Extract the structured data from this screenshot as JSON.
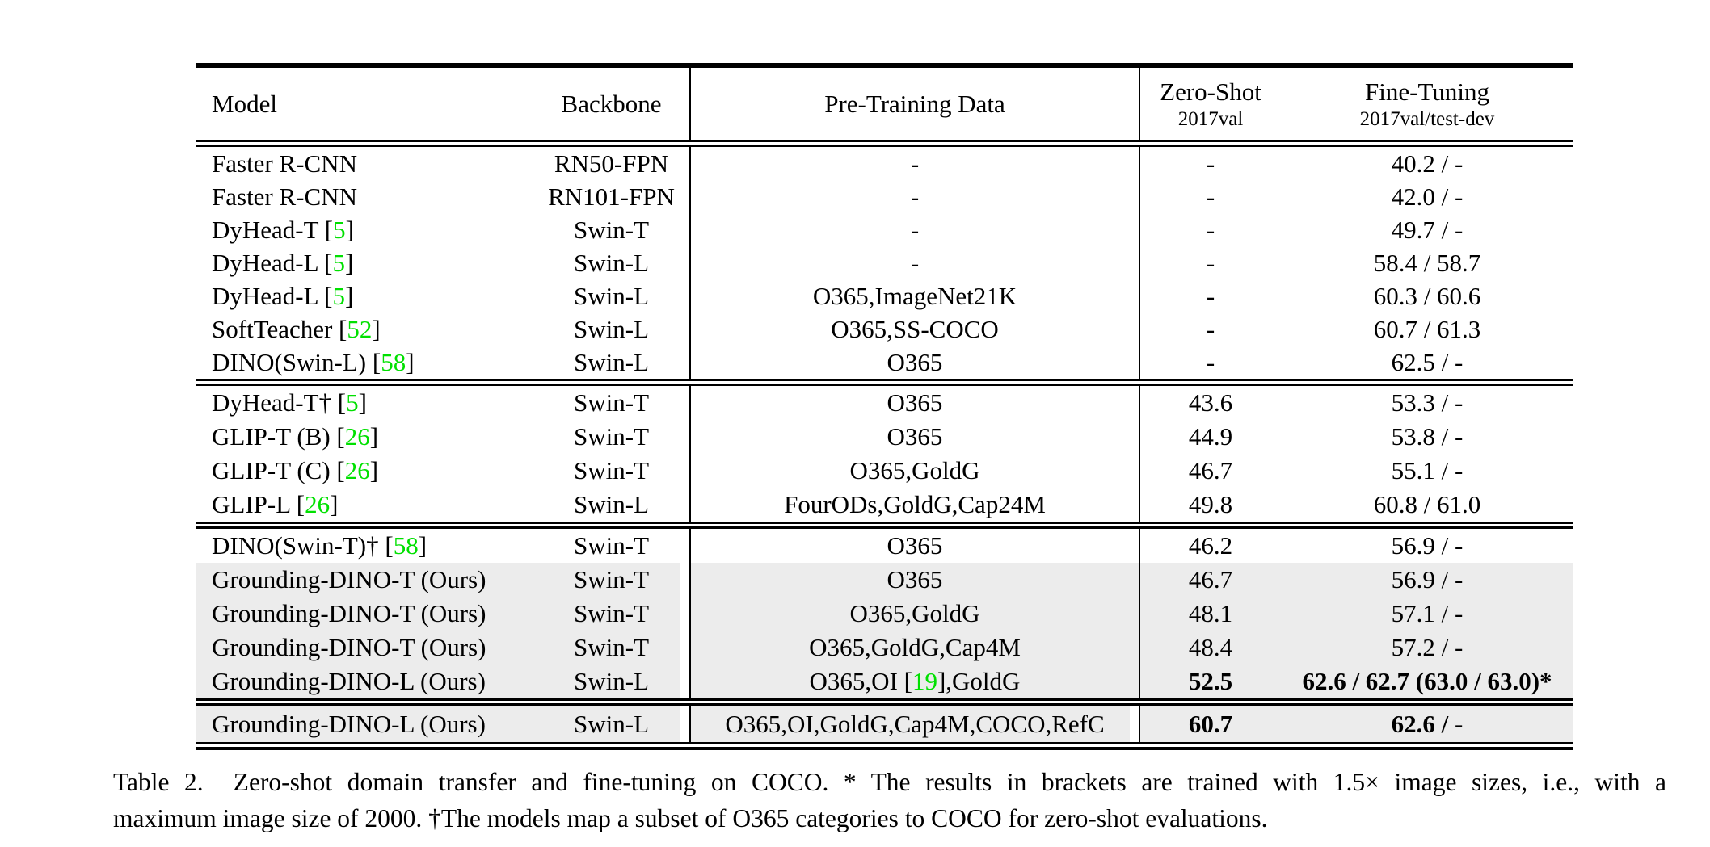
{
  "table": {
    "header": {
      "model": "Model",
      "backbone": "Backbone",
      "pretraining": "Pre-Training Data",
      "zeroshot_title": "Zero-Shot",
      "zeroshot_sub": "2017val",
      "finetuning_title": "Fine-Tuning",
      "finetuning_sub": "2017val/test-dev"
    },
    "colors": {
      "citation_green": "#00e000",
      "highlight_gray": "#ececec"
    },
    "blocks": [
      {
        "rows": [
          {
            "model": [
              [
                "Faster R-CNN",
                0
              ]
            ],
            "backbone": "RN50-FPN",
            "pretrain": [
              [
                "-",
                0
              ]
            ],
            "zs": "-",
            "ft": "40.2 / -",
            "bold": false,
            "hl": false
          },
          {
            "model": [
              [
                "Faster R-CNN",
                0
              ]
            ],
            "backbone": "RN101-FPN",
            "pretrain": [
              [
                "-",
                0
              ]
            ],
            "zs": "-",
            "ft": "42.0 / -",
            "bold": false,
            "hl": false
          },
          {
            "model": [
              [
                "DyHead-T [",
                0
              ],
              [
                "5",
                1
              ],
              [
                "]",
                0
              ]
            ],
            "backbone": "Swin-T",
            "pretrain": [
              [
                "-",
                0
              ]
            ],
            "zs": "-",
            "ft": "49.7 / -",
            "bold": false,
            "hl": false
          },
          {
            "model": [
              [
                "DyHead-L [",
                0
              ],
              [
                "5",
                1
              ],
              [
                "]",
                0
              ]
            ],
            "backbone": "Swin-L",
            "pretrain": [
              [
                "-",
                0
              ]
            ],
            "zs": "-",
            "ft": "58.4 / 58.7",
            "bold": false,
            "hl": false
          },
          {
            "model": [
              [
                "DyHead-L [",
                0
              ],
              [
                "5",
                1
              ],
              [
                "]",
                0
              ]
            ],
            "backbone": "Swin-L",
            "pretrain": [
              [
                "O365,ImageNet21K",
                0
              ]
            ],
            "zs": "-",
            "ft": "60.3 / 60.6",
            "bold": false,
            "hl": false
          },
          {
            "model": [
              [
                "SoftTeacher [",
                0
              ],
              [
                "52",
                1
              ],
              [
                "]",
                0
              ]
            ],
            "backbone": "Swin-L",
            "pretrain": [
              [
                "O365,SS-COCO",
                0
              ]
            ],
            "zs": "-",
            "ft": "60.7 / 61.3",
            "bold": false,
            "hl": false
          },
          {
            "model": [
              [
                "DINO(Swin-L) [",
                0
              ],
              [
                "58",
                1
              ],
              [
                "]",
                0
              ]
            ],
            "backbone": "Swin-L",
            "pretrain": [
              [
                "O365",
                0
              ]
            ],
            "zs": "-",
            "ft": "62.5 / -",
            "bold": false,
            "hl": false
          }
        ]
      },
      {
        "rows": [
          {
            "model": [
              [
                "DyHead-T† [",
                0
              ],
              [
                "5",
                1
              ],
              [
                "]",
                0
              ]
            ],
            "backbone": "Swin-T",
            "pretrain": [
              [
                "O365",
                0
              ]
            ],
            "zs": "43.6",
            "ft": "53.3 / -",
            "bold": false,
            "hl": false
          },
          {
            "model": [
              [
                "GLIP-T (B) [",
                0
              ],
              [
                "26",
                1
              ],
              [
                "]",
                0
              ]
            ],
            "backbone": "Swin-T",
            "pretrain": [
              [
                "O365",
                0
              ]
            ],
            "zs": "44.9",
            "ft": "53.8 / -",
            "bold": false,
            "hl": false
          },
          {
            "model": [
              [
                "GLIP-T (C) [",
                0
              ],
              [
                "26",
                1
              ],
              [
                "]",
                0
              ]
            ],
            "backbone": "Swin-T",
            "pretrain": [
              [
                "O365,GoldG",
                0
              ]
            ],
            "zs": "46.7",
            "ft": "55.1 / -",
            "bold": false,
            "hl": false
          },
          {
            "model": [
              [
                "GLIP-L [",
                0
              ],
              [
                "26",
                1
              ],
              [
                "]",
                0
              ]
            ],
            "backbone": "Swin-L",
            "pretrain": [
              [
                "FourODs,GoldG,Cap24M",
                0
              ]
            ],
            "zs": "49.8",
            "ft": "60.8 / 61.0",
            "bold": false,
            "hl": false
          }
        ]
      },
      {
        "rows": [
          {
            "model": [
              [
                "DINO(Swin-T)† [",
                0
              ],
              [
                "58",
                1
              ],
              [
                "]",
                0
              ]
            ],
            "backbone": "Swin-T",
            "pretrain": [
              [
                "O365",
                0
              ]
            ],
            "zs": "46.2",
            "ft": "56.9 / -",
            "bold": false,
            "hl": false
          },
          {
            "model": [
              [
                "Grounding-DINO-T (Ours)",
                0
              ]
            ],
            "backbone": "Swin-T",
            "pretrain": [
              [
                "O365",
                0
              ]
            ],
            "zs": "46.7",
            "ft": "56.9 / -",
            "bold": false,
            "hl": true
          },
          {
            "model": [
              [
                "Grounding-DINO-T (Ours)",
                0
              ]
            ],
            "backbone": "Swin-T",
            "pretrain": [
              [
                "O365,GoldG",
                0
              ]
            ],
            "zs": "48.1",
            "ft": "57.1 / -",
            "bold": false,
            "hl": true
          },
          {
            "model": [
              [
                "Grounding-DINO-T (Ours)",
                0
              ]
            ],
            "backbone": "Swin-T",
            "pretrain": [
              [
                "O365,GoldG,Cap4M",
                0
              ]
            ],
            "zs": "48.4",
            "ft": "57.2 / -",
            "bold": false,
            "hl": true
          },
          {
            "model": [
              [
                "Grounding-DINO-L (Ours)",
                0
              ]
            ],
            "backbone": "Swin-L",
            "pretrain": [
              [
                "O365,OI [",
                0
              ],
              [
                "19",
                1
              ],
              [
                "],GoldG",
                0
              ]
            ],
            "zs": "52.5",
            "ft": "62.6 / 62.7 (63.0 / 63.0)*",
            "bold": true,
            "hl": true
          }
        ]
      },
      {
        "rows": [
          {
            "model": [
              [
                "Grounding-DINO-L (Ours)",
                0
              ]
            ],
            "backbone": "Swin-L",
            "pretrain": [
              [
                "O365,OI,GoldG,Cap4M,COCO,RefC",
                0
              ]
            ],
            "zs": "60.7",
            "ft": "62.6 / -",
            "bold": true,
            "hl": true,
            "gap3": true
          }
        ]
      }
    ]
  },
  "caption": {
    "line1": "Table 2.  Zero-shot domain transfer and fine-tuning on COCO. * The results in brackets are trained with 1.5× image sizes, i.e., with a",
    "line2": "maximum image size of 2000. †The models map a subset of O365 categories to COCO for zero-shot evaluations."
  }
}
